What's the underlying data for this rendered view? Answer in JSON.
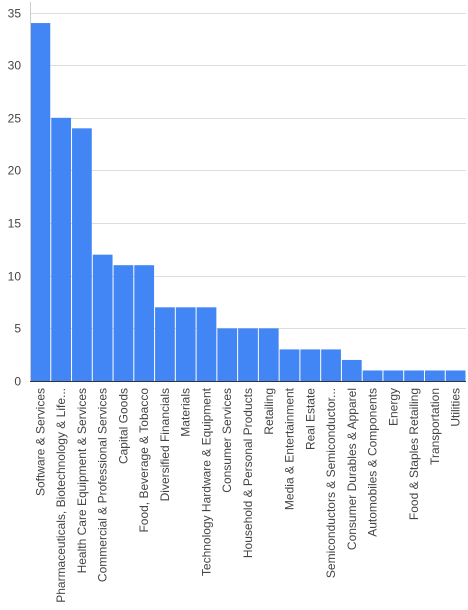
{
  "chart_data": {
    "type": "bar",
    "title": "",
    "xlabel": "",
    "ylabel": "",
    "ylim": [
      0,
      36
    ],
    "yticks": [
      0,
      5,
      10,
      15,
      20,
      25,
      30,
      35
    ],
    "grid": true,
    "bar_color": "#4285f4",
    "grid_color": "#dddddd",
    "categories": [
      "Software & Services",
      "Pharmaceuticals, Biotechnology & Life...",
      "Health Care Equipment & Services",
      "Commercial & Professional Services",
      "Capital Goods",
      "Food, Beverage & Tobacco",
      "Diversified Financials",
      "Materials",
      "Technology Hardware & Equipment",
      "Consumer Services",
      "Household & Personal Products",
      "Retailing",
      "Media & Entertainment",
      "Real Estate",
      "Semiconductors & Semiconductor...",
      "Consumer Durables & Apparel",
      "Automobiles & Components",
      "Energy",
      "Food & Staples Retailing",
      "Transportation",
      "Utilities"
    ],
    "values": [
      34,
      25,
      24,
      12,
      11,
      11,
      7,
      7,
      7,
      5,
      5,
      5,
      3,
      3,
      3,
      2,
      1,
      1,
      1,
      1,
      1
    ]
  }
}
